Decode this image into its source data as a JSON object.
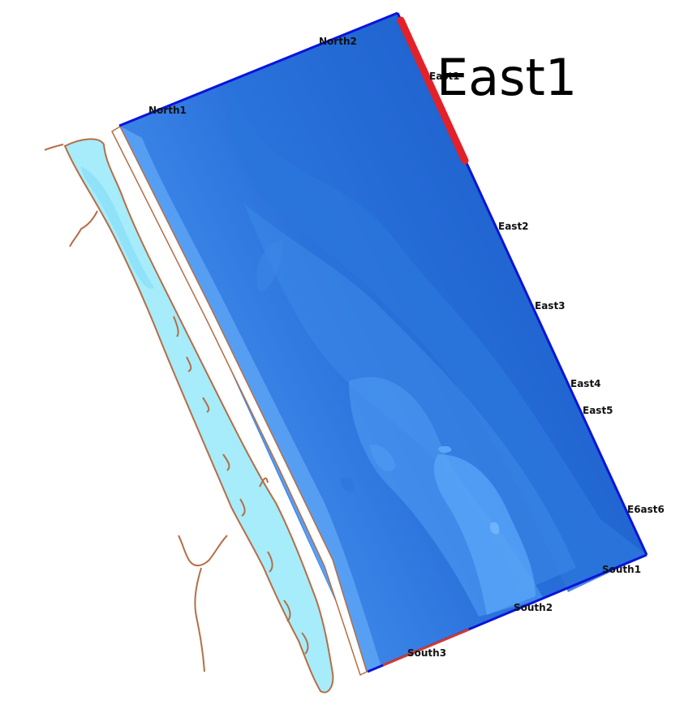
{
  "map": {
    "highlight_label": "East1",
    "boundary_labels": {
      "north1": "North1",
      "north2": "North2",
      "east1": "East1",
      "east2": "East2",
      "east3": "East3",
      "east4": "East4",
      "east5": "East5",
      "east6": "E6ast6",
      "south1": "South1",
      "south2": "South2",
      "south3": "South3"
    },
    "colors": {
      "deep_water": "#1f64d0",
      "mid_water": "#3a85e6",
      "shallow_water": "#5aa6f8",
      "lagoon": "#a6ecfb",
      "coastline": "#b46e46",
      "boundary_line": "#0a14dc",
      "selected_boundary": "#e42128",
      "south3_segment": "#d33a2e"
    }
  }
}
